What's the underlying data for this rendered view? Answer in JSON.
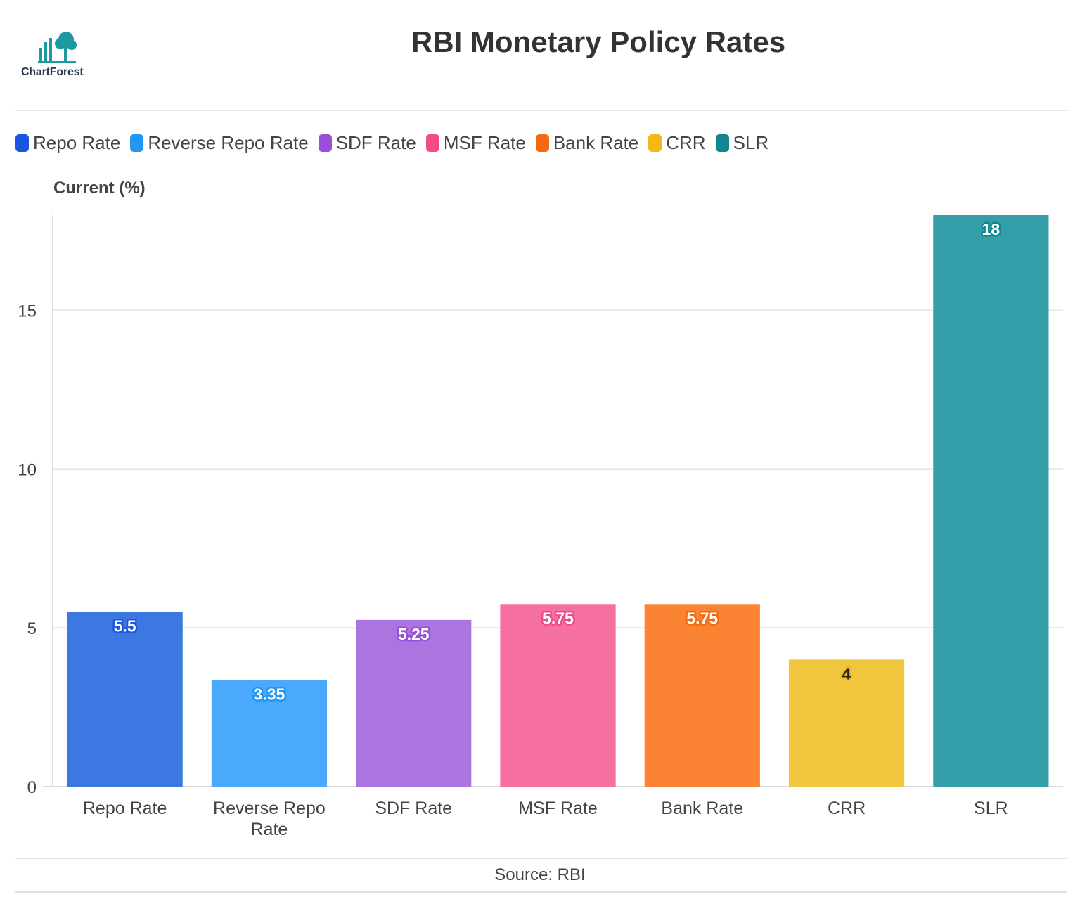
{
  "logo": {
    "text": "ChartForest"
  },
  "title": "RBI Monetary Policy Rates",
  "source": "Source: RBI",
  "legend": [
    {
      "label": "Repo Rate",
      "color": "#1a56e0"
    },
    {
      "label": "Reverse Repo Rate",
      "color": "#2196f3"
    },
    {
      "label": "SDF Rate",
      "color": "#9a4fd8"
    },
    {
      "label": "MSF Rate",
      "color": "#f04b8a"
    },
    {
      "label": "Bank Rate",
      "color": "#f46a10"
    },
    {
      "label": "CRR",
      "color": "#f2b81a"
    },
    {
      "label": "SLR",
      "color": "#11868f"
    }
  ],
  "chart_data": {
    "type": "bar",
    "title": "RBI Monetary Policy Rates",
    "ylabel": "Current (%)",
    "xlabel": "",
    "categories": [
      "Repo Rate",
      "Reverse Repo Rate",
      "SDF Rate",
      "MSF Rate",
      "Bank Rate",
      "CRR",
      "SLR"
    ],
    "category_display": [
      [
        "Repo Rate"
      ],
      [
        "Reverse Repo",
        "Rate"
      ],
      [
        "SDF Rate"
      ],
      [
        "MSF Rate"
      ],
      [
        "Bank Rate"
      ],
      [
        "CRR"
      ],
      [
        "SLR"
      ]
    ],
    "values": [
      5.5,
      3.35,
      5.25,
      5.75,
      5.75,
      4,
      18
    ],
    "value_labels": [
      "5.5",
      "3.35",
      "5.25",
      "5.75",
      "5.75",
      "4",
      "18"
    ],
    "bar_colors": [
      "#3d78e2",
      "#4aa8fd",
      "#ab74e0",
      "#f56fa0",
      "#fb8434",
      "#f3c63f",
      "#349fa8"
    ],
    "label_outline_colors": [
      "#1a56e0",
      "#2196f3",
      "#9a4fd8",
      "#f04b8a",
      "#f46a10",
      "#f2b81a",
      "#11868f"
    ],
    "label_text_colors": [
      "#ffffff",
      "#ffffff",
      "#ffffff",
      "#ffffff",
      "#ffffff",
      "#222222",
      "#ffffff"
    ],
    "ylim": [
      0,
      18
    ],
    "yticks": [
      0,
      5,
      10,
      15
    ],
    "grid": true,
    "legend_position": "top-left"
  }
}
